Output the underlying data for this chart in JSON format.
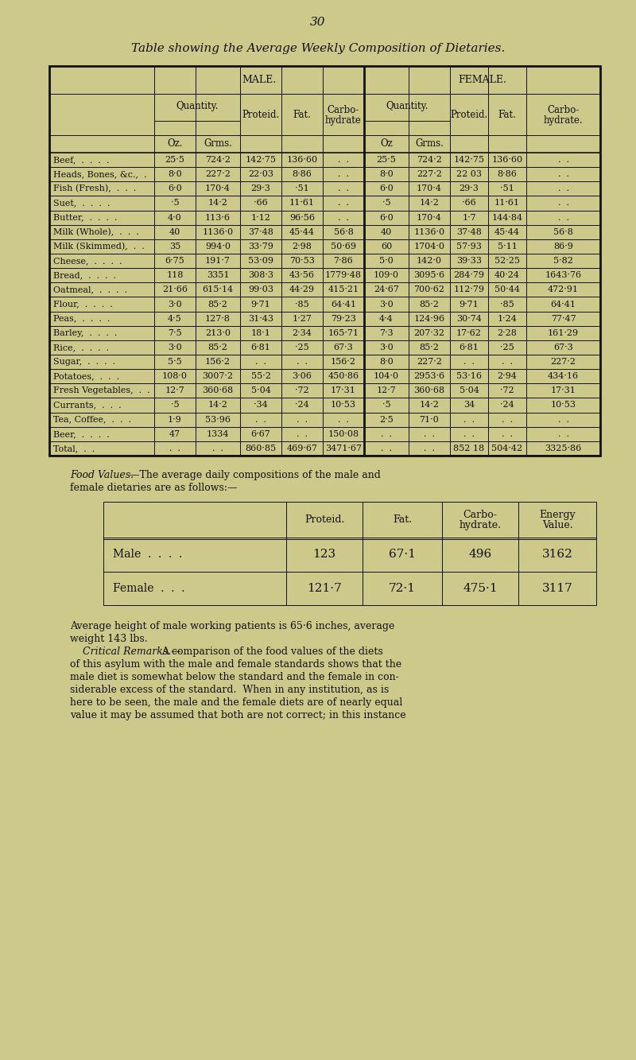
{
  "page_number": "30",
  "title": "Table showing the Average Weekly Composition of Dietaries.",
  "bg_color": "#cdc98a",
  "text_color": "#111111",
  "main_table_rows": [
    [
      "Beef,  .  .  .  .",
      "25·5",
      "724·2",
      "142·75",
      "136·60",
      ".  .",
      "25·5",
      "724·2",
      "142·75",
      "136·60",
      ".  ."
    ],
    [
      "Heads, Bones, &c.,  .",
      "8·0",
      "227·2",
      "22·03",
      "8·86",
      ".  .",
      "8·0",
      "227·2",
      "22 03",
      "8·86",
      ".  ."
    ],
    [
      "Fish (Fresh),  .  .  .",
      "6·0",
      "170·4",
      "29·3",
      "·51",
      ".  .",
      "6·0",
      "170·4",
      "29·3",
      "·51",
      ".  ."
    ],
    [
      "Suet,  .  .  .  .",
      "·5",
      "14·2",
      "·66",
      "11·61",
      ".  .",
      "·5",
      "14·2",
      "·66",
      "11·61",
      ".  ."
    ],
    [
      "Butter,  .  .  .  .",
      "4·0",
      "113·6",
      "1·12",
      "96·56",
      ".  .",
      "6·0",
      "170·4",
      "1·7",
      "144·84",
      ".  ."
    ],
    [
      "Milk (Whole),  .  .  .",
      "40",
      "1136·0",
      "37·48",
      "45·44",
      "56·8",
      "40",
      "1136·0",
      "37·48",
      "45·44",
      "56·8"
    ],
    [
      "Milk (Skimmed),  .  .",
      "35",
      "994·0",
      "33·79",
      "2·98",
      "50·69",
      "60",
      "1704·0",
      "57·93",
      "5·11",
      "86·9"
    ],
    [
      "Cheese,  .  .  .  .",
      "6·75",
      "191·7",
      "53·09",
      "70·53",
      "7·86",
      "5·0",
      "142·0",
      "39·33",
      "52·25",
      "5·82"
    ],
    [
      "Bread,  .  .  .  .",
      "118",
      "3351",
      "308·3",
      "43·56",
      "1779·48",
      "109·0",
      "3095·6",
      "284·79",
      "40·24",
      "1643·76"
    ],
    [
      "Oatmeal,  .  .  .  .",
      "21·66",
      "615·14",
      "99·03",
      "44·29",
      "415·21",
      "24·67",
      "700·62",
      "112·79",
      "50·44",
      "472·91"
    ],
    [
      "Flour,  .  .  .  .",
      "3·0",
      "85·2",
      "9·71",
      "·85",
      "64·41",
      "3·0",
      "85·2",
      "9·71",
      "·85",
      "64·41"
    ],
    [
      "Peas,  .  .  .  .",
      "4·5",
      "127·8",
      "31·43",
      "1·27",
      "79·23",
      "4·4",
      "124·96",
      "30·74",
      "1·24",
      "77·47"
    ],
    [
      "Barley,  .  .  .  .",
      "7·5",
      "213·0",
      "18·1",
      "2·34",
      "165·71",
      "7·3",
      "207·32",
      "17·62",
      "2·28",
      "161·29"
    ],
    [
      "Rice,  .  .  .  .",
      "3·0",
      "85·2",
      "6·81",
      "·25",
      "67·3",
      "3·0",
      "85·2",
      "6·81",
      "·25",
      "67·3"
    ],
    [
      "Sugar,  .  .  .  .",
      "5·5",
      "156·2",
      ".  .",
      ".  .",
      "156·2",
      "8·0",
      "227·2",
      ".  .",
      ".  .",
      "227·2"
    ],
    [
      "Potatoes,  .  .  .",
      "108·0",
      "3007·2",
      "55·2",
      "3·06",
      "450·86",
      "104·0",
      "2953·6",
      "53·16",
      "2·94",
      "434·16"
    ],
    [
      "Fresh Vegetables,  .  .",
      "12·7",
      "360·68",
      "5·04",
      "·72",
      "17·31",
      "12·7",
      "360·68",
      "5·04",
      "·72",
      "17·31"
    ],
    [
      "Currants,  .  .  .",
      "·5",
      "14·2",
      "·34",
      "·24",
      "10·53",
      "·5",
      "14·2",
      "34",
      "·24",
      "10·53"
    ],
    [
      "Tea, Coffee,  .  .  .",
      "1·9",
      "53·96",
      ".  .",
      ".  .",
      ".  .",
      "2·5",
      "71·0",
      ".  .",
      ".  .",
      ".  ."
    ],
    [
      "Beer,  .  .  .  .",
      "47",
      "1334",
      "6·67",
      ".  .",
      "150·08",
      ".  .",
      ".  .",
      ".  .",
      ".  .",
      ".  ."
    ],
    [
      "Total,  .  .",
      ".  .",
      ".  .",
      "860·85",
      "469·67",
      "3471·67",
      ".  .",
      ".  .",
      "852 18",
      "504·42",
      "3325·86"
    ]
  ],
  "food_table_rows": [
    [
      "Male  .  .  .  .",
      "123",
      "67·1",
      "496",
      "3162"
    ],
    [
      "Female  .  .  .",
      "121·7",
      "72·1",
      "475·1",
      "3117"
    ]
  ],
  "bottom_lines": [
    "Average height of male working patients is 65·6 inches, average",
    "weight 143 lbs.",
    "    Critical Remarks.—A comparison of the food values of the diets",
    "of this asylum with the male and female standards shows that the",
    "male diet is somewhat below the standard and the female in con-",
    "siderable excess of the standard.  When in any institution, as is",
    "here to be seen, the male and the female diets are of nearly equal",
    "value it may be assumed that both are not correct; in this instance"
  ]
}
